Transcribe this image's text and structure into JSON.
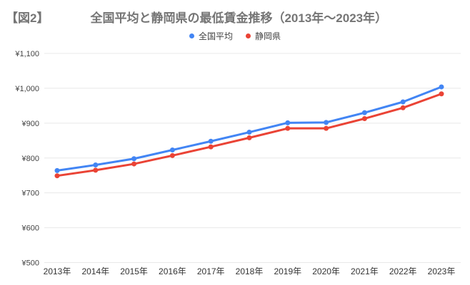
{
  "title": {
    "tag": "【図2】",
    "main": "全国平均と静岡県の最低賃金推移（2013年〜2023年）"
  },
  "legend": {
    "position": "top",
    "items": [
      {
        "label": "全国平均",
        "color": "#4285F4"
      },
      {
        "label": "静岡県",
        "color": "#EA4335"
      }
    ]
  },
  "chart_data": {
    "type": "line",
    "title": "全国平均と静岡県の最低賃金推移（2013年〜2023年）",
    "categories": [
      "2013年",
      "2014年",
      "2015年",
      "2016年",
      "2017年",
      "2018年",
      "2019年",
      "2020年",
      "2021年",
      "2022年",
      "2023年"
    ],
    "series": [
      {
        "name": "全国平均",
        "color": "#4285F4",
        "values": [
          764,
          780,
          798,
          823,
          848,
          874,
          901,
          902,
          930,
          961,
          1004
        ]
      },
      {
        "name": "静岡県",
        "color": "#EA4335",
        "values": [
          749,
          765,
          783,
          807,
          832,
          858,
          885,
          885,
          913,
          944,
          984
        ]
      }
    ],
    "xlabel": "",
    "ylabel": "",
    "ylim": [
      500,
      1100
    ],
    "y_ticks": [
      500,
      600,
      700,
      800,
      900,
      1000,
      1100
    ],
    "y_tick_labels": [
      "¥500",
      "¥600",
      "¥700",
      "¥800",
      "¥900",
      "¥1,000",
      "¥1,100"
    ],
    "grid": true,
    "legend_position": "top"
  },
  "colors": {
    "background": "#FFFFFF",
    "gridline": "#E8E8E8",
    "axis_label_y": "#444444",
    "axis_label_x": "#333333",
    "title_text": "#757575",
    "series_blue": "#4285F4",
    "series_red": "#EA4335"
  }
}
